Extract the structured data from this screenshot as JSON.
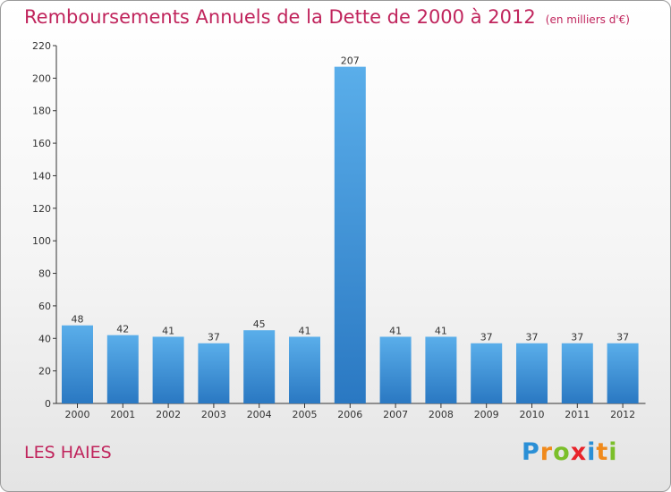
{
  "header": {
    "title": "Remboursements Annuels de la Dette de 2000 à 2012",
    "unit": "(en milliers d'€)"
  },
  "footer": {
    "commune": "LES HAIES",
    "logo": {
      "text": "Proxiti",
      "letters": [
        {
          "ch": "P",
          "color": "#2a8fd6"
        },
        {
          "ch": "r",
          "color": "#f08a1c"
        },
        {
          "ch": "o",
          "color": "#7bbf2a"
        },
        {
          "ch": "x",
          "color": "#e8232a"
        },
        {
          "ch": "i",
          "color": "#2a8fd6"
        },
        {
          "ch": "t",
          "color": "#f08a1c"
        },
        {
          "ch": "i",
          "color": "#7bbf2a"
        }
      ]
    }
  },
  "colors": {
    "title": "#c0245c",
    "bar_top": "#5aaeea",
    "bar_bottom": "#2a78c2",
    "axis": "#333333"
  },
  "chart_data": {
    "type": "bar",
    "title": "Remboursements Annuels de la Dette de 2000 à 2012",
    "subtitle": "(en milliers d'€)",
    "categories": [
      "2000",
      "2001",
      "2002",
      "2003",
      "2004",
      "2005",
      "2006",
      "2007",
      "2008",
      "2009",
      "2010",
      "2011",
      "2012"
    ],
    "values": [
      48,
      42,
      41,
      37,
      45,
      41,
      207,
      41,
      41,
      37,
      37,
      37,
      37
    ],
    "ylim": [
      0,
      220
    ],
    "yticks": [
      0,
      20,
      40,
      60,
      80,
      100,
      120,
      140,
      160,
      180,
      200,
      220
    ],
    "grid": false,
    "legend": "none",
    "data_labels": true
  }
}
